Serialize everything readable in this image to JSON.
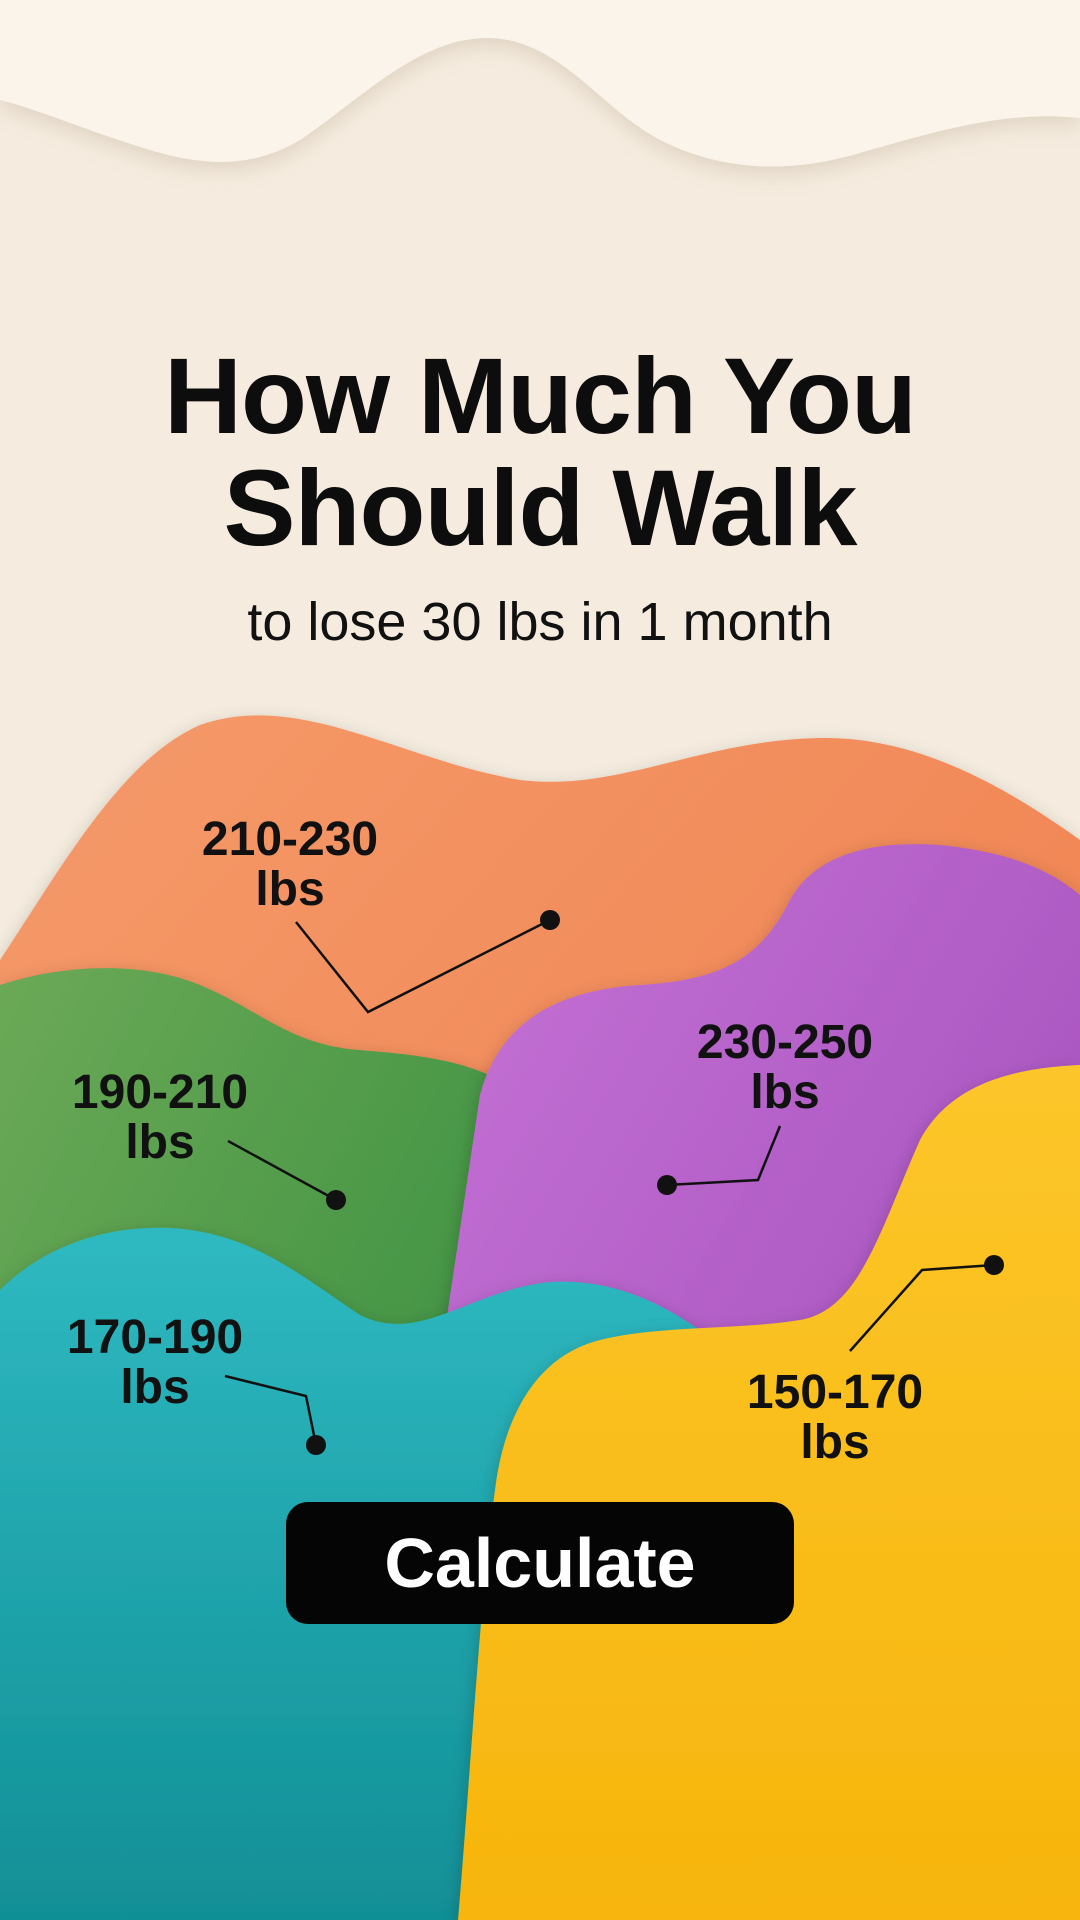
{
  "header": {
    "title_line1": "How Much You",
    "title_line2": "Should Walk",
    "subtitle": "to lose 30 lbs in 1 month"
  },
  "ranges": [
    {
      "id": "210-230",
      "range": "210-230",
      "unit": "lbs",
      "color": "#f28454"
    },
    {
      "id": "190-210",
      "range": "190-210",
      "unit": "lbs",
      "color": "#4a9a46"
    },
    {
      "id": "230-250",
      "range": "230-250",
      "unit": "lbs",
      "color": "#b25cc8"
    },
    {
      "id": "170-190",
      "range": "170-190",
      "unit": "lbs",
      "color": "#1aa7ad"
    },
    {
      "id": "150-170",
      "range": "150-170",
      "unit": "lbs",
      "color": "#fcbe14"
    }
  ],
  "actions": {
    "calculate_label": "Calculate"
  },
  "colors": {
    "background": "#f5ecdf",
    "text": "#111111",
    "button_bg": "#050505",
    "button_text": "#ffffff"
  }
}
